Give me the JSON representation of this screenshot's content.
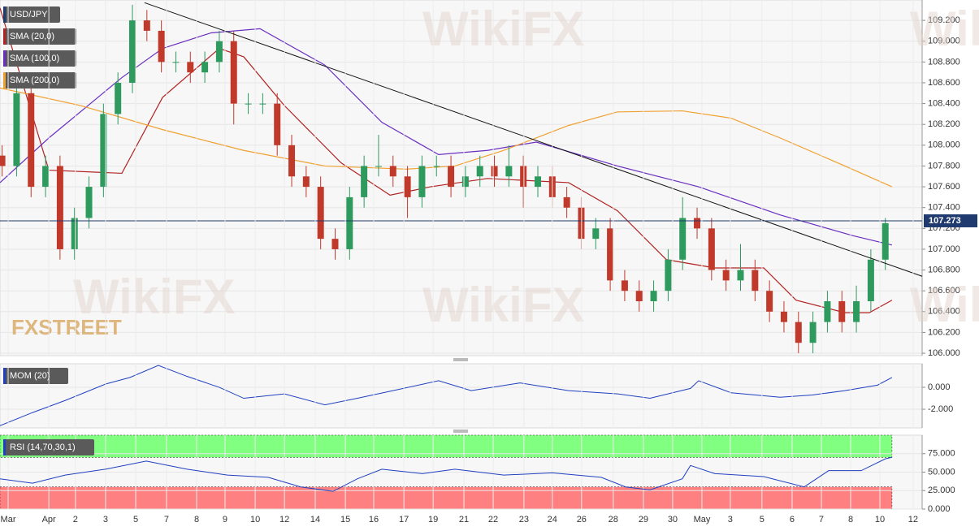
{
  "chart_data": [
    {
      "type": "candlestick",
      "name": "USD/JPY",
      "watermark": "WikiFX",
      "brand": "FXSTREET",
      "xlim": [
        -0.27,
        30.3
      ],
      "ylim": [
        105.977,
        109.396
      ],
      "yticks": [
        {
          "value": 106.0,
          "label": "106.000"
        },
        {
          "value": 106.2,
          "label": "106.200"
        },
        {
          "value": 106.4,
          "label": "106.400"
        },
        {
          "value": 106.6,
          "label": "106.600"
        },
        {
          "value": 106.8,
          "label": "106.800"
        },
        {
          "value": 107.0,
          "label": "107.000"
        },
        {
          "value": 107.2,
          "label": "107.200"
        },
        {
          "value": 107.4,
          "label": "107.400"
        },
        {
          "value": 107.6,
          "label": "107.600"
        },
        {
          "value": 107.8,
          "label": "107.800"
        },
        {
          "value": 108.0,
          "label": "108.000"
        },
        {
          "value": 108.2,
          "label": "108.200"
        },
        {
          "value": 108.4,
          "label": "108.400"
        },
        {
          "value": 108.6,
          "label": "108.600"
        },
        {
          "value": 108.8,
          "label": "108.800"
        },
        {
          "value": 109.0,
          "label": "109.000"
        },
        {
          "value": 109.2,
          "label": "109.200"
        }
      ],
      "up_color": "#2e9a5e",
      "down_color": "#c0392b",
      "x": [
        -0.2,
        0.28,
        0.76,
        1.24,
        1.72,
        2.2,
        2.68,
        3.16,
        3.64,
        4.12,
        4.6,
        5.08,
        5.56,
        6.04,
        6.52,
        7.0,
        7.48,
        7.96,
        8.44,
        8.92,
        9.4,
        9.88,
        10.36,
        10.84,
        11.32,
        11.8,
        12.28,
        12.76,
        13.24,
        13.72,
        14.2,
        14.68,
        15.16,
        15.64,
        16.12,
        16.6,
        17.08,
        17.56,
        18.04,
        18.52,
        19.0,
        19.48,
        19.96,
        20.44,
        20.92,
        21.4,
        21.88,
        22.36,
        22.84,
        23.32,
        23.8,
        24.28,
        24.76,
        25.24,
        25.72,
        26.2,
        26.68,
        27.16,
        27.64,
        28.12,
        28.6,
        29.08
      ],
      "open": [
        107.9,
        107.8,
        108.5,
        107.6,
        107.8,
        107.0,
        107.3,
        107.6,
        108.3,
        108.6,
        109.2,
        109.1,
        108.8,
        108.8,
        108.7,
        108.8,
        109.0,
        108.4,
        108.4,
        108.4,
        108.0,
        107.7,
        107.6,
        107.1,
        107.0,
        107.5,
        107.8,
        107.8,
        107.7,
        107.5,
        107.8,
        107.8,
        107.6,
        107.7,
        107.8,
        107.7,
        107.8,
        107.6,
        107.7,
        107.5,
        107.4,
        107.1,
        107.2,
        106.7,
        106.6,
        106.5,
        106.6,
        106.9,
        107.3,
        107.2,
        106.8,
        106.7,
        106.8,
        106.6,
        106.4,
        106.3,
        106.1,
        106.3,
        106.5,
        106.3,
        106.5,
        106.9
      ],
      "high": [
        108.0,
        108.6,
        108.6,
        107.9,
        107.9,
        107.4,
        107.7,
        108.4,
        108.7,
        109.35,
        109.3,
        109.2,
        108.9,
        108.9,
        108.9,
        109.1,
        109.1,
        108.5,
        108.5,
        108.5,
        108.1,
        107.8,
        107.7,
        107.2,
        107.6,
        107.9,
        108.1,
        107.9,
        107.8,
        107.9,
        107.9,
        107.9,
        107.8,
        107.9,
        107.9,
        108.0,
        107.9,
        107.8,
        107.8,
        107.6,
        107.5,
        107.3,
        107.3,
        106.8,
        106.7,
        106.7,
        107.0,
        107.5,
        107.4,
        107.3,
        106.9,
        107.05,
        106.9,
        106.7,
        106.5,
        106.4,
        106.4,
        106.6,
        106.6,
        106.65,
        107.0,
        107.3
      ],
      "low": [
        107.7,
        107.7,
        107.5,
        107.5,
        106.9,
        106.9,
        107.2,
        107.5,
        108.2,
        108.5,
        109.0,
        108.7,
        108.7,
        108.6,
        108.6,
        108.7,
        108.2,
        108.3,
        108.3,
        107.9,
        107.6,
        107.5,
        107.0,
        106.9,
        106.9,
        107.4,
        107.7,
        107.6,
        107.3,
        107.4,
        107.7,
        107.5,
        107.5,
        107.6,
        107.6,
        107.6,
        107.4,
        107.5,
        107.4,
        107.3,
        107.0,
        107.0,
        106.6,
        106.5,
        106.4,
        106.4,
        106.5,
        106.8,
        107.1,
        106.7,
        106.6,
        106.6,
        106.5,
        106.3,
        106.2,
        106.0,
        106.0,
        106.2,
        106.2,
        106.2,
        106.4,
        106.8
      ],
      "close": [
        107.8,
        108.5,
        107.6,
        107.8,
        107.0,
        107.3,
        107.6,
        108.3,
        108.6,
        109.2,
        109.1,
        108.8,
        108.8,
        108.7,
        108.8,
        109.0,
        108.4,
        108.4,
        108.4,
        108.0,
        107.7,
        107.6,
        107.1,
        107.0,
        107.5,
        107.8,
        107.8,
        107.7,
        107.5,
        107.8,
        107.8,
        107.6,
        107.7,
        107.8,
        107.7,
        107.8,
        107.6,
        107.7,
        107.5,
        107.4,
        107.1,
        107.2,
        106.7,
        106.6,
        106.5,
        106.6,
        106.9,
        107.3,
        107.2,
        106.8,
        106.7,
        106.8,
        106.6,
        106.4,
        106.3,
        106.1,
        106.3,
        106.5,
        106.3,
        106.5,
        106.9,
        107.25
      ],
      "last_price": 107.273,
      "trendline": {
        "x": [
          4.52,
          30.3
        ],
        "y": [
          109.37,
          106.74
        ]
      },
      "series": [
        {
          "name": "SMA (20,0)",
          "color": "#b22222",
          "x": [
            -0.27,
            1.35,
            3.77,
            5.12,
            7.0,
            7.81,
            9.16,
            11.04,
            12.66,
            14.0,
            15.89,
            18.58,
            20.2,
            21.82,
            23.43,
            25.05,
            26.12,
            27.74,
            28.55,
            29.3
          ],
          "values": [
            109.32,
            107.76,
            107.73,
            108.46,
            108.93,
            108.85,
            108.38,
            107.83,
            107.52,
            107.6,
            107.68,
            107.64,
            107.37,
            106.9,
            106.82,
            106.82,
            106.51,
            106.39,
            106.39,
            106.51
          ]
        },
        {
          "name": "SMA (100,0)",
          "color": "#6a2fc0",
          "x": [
            -0.27,
            1.35,
            3.77,
            5.12,
            6.73,
            8.35,
            10.5,
            12.39,
            14.27,
            15.89,
            17.51,
            20.2,
            22.89,
            25.59,
            28.01,
            29.3
          ],
          "values": [
            107.64,
            108.07,
            108.65,
            108.93,
            109.08,
            109.12,
            108.77,
            108.22,
            107.91,
            107.95,
            108.03,
            107.8,
            107.6,
            107.33,
            107.13,
            107.04
          ]
        },
        {
          "name": "SMA (200,0)",
          "color": "#f0a030",
          "x": [
            -0.27,
            2.42,
            5.12,
            7.81,
            10.5,
            13.2,
            14.81,
            16.43,
            18.58,
            20.2,
            22.35,
            23.97,
            25.59,
            27.74,
            29.3
          ],
          "values": [
            108.55,
            108.38,
            108.15,
            107.95,
            107.8,
            107.77,
            107.8,
            107.95,
            108.19,
            108.32,
            108.33,
            108.26,
            108.07,
            107.8,
            107.6
          ]
        }
      ]
    },
    {
      "type": "line",
      "name": "MOM (20)",
      "color": "#2040c0",
      "xlim": [
        -0.27,
        30.3
      ],
      "ylim": [
        -3.7,
        2.15
      ],
      "yticks": [
        {
          "value": -2,
          "label": "-2.000"
        },
        {
          "value": 0,
          "label": "0.000"
        }
      ],
      "x": [
        -0.27,
        0.81,
        1.89,
        3.23,
        4.04,
        4.98,
        5.93,
        7.0,
        7.81,
        9.16,
        10.5,
        11.58,
        12.93,
        14.27,
        15.35,
        16.97,
        18.58,
        20.2,
        21.28,
        22.62,
        22.89,
        23.97,
        25.59,
        26.66,
        27.74,
        28.82,
        29.3
      ],
      "values": [
        -3.5,
        -2.3,
        -1.2,
        0.3,
        0.9,
        2.0,
        1.0,
        0.0,
        -1.0,
        -0.6,
        -1.6,
        -1.0,
        -0.2,
        0.6,
        -0.3,
        0.4,
        -0.3,
        -0.6,
        -1.0,
        -0.1,
        0.6,
        -0.5,
        -0.9,
        -0.7,
        -0.3,
        0.2,
        0.9
      ]
    },
    {
      "type": "line",
      "name": "RSI (14,70,30,1)",
      "color": "#2040c0",
      "xlim": [
        -0.27,
        30.3
      ],
      "ylim": [
        0,
        100
      ],
      "bands": [
        {
          "from": 70,
          "to": 100,
          "color": "#80ff80"
        },
        {
          "from": 0,
          "to": 30,
          "color": "#ff8080"
        }
      ],
      "yticks": [
        {
          "value": 0,
          "label": "0.000"
        },
        {
          "value": 25,
          "label": "25.000"
        },
        {
          "value": 50,
          "label": "50.000"
        },
        {
          "value": 75,
          "label": "75.000"
        }
      ],
      "xticks": [
        {
          "value": 0,
          "label": "Mar"
        },
        {
          "value": 1.35,
          "label": "Apr"
        },
        {
          "value": 2.23,
          "label": "2"
        },
        {
          "value": 3.23,
          "label": "3"
        },
        {
          "value": 4.23,
          "label": "5"
        },
        {
          "value": 5.25,
          "label": "7"
        },
        {
          "value": 6.25,
          "label": "8"
        },
        {
          "value": 7.19,
          "label": "9"
        },
        {
          "value": 8.19,
          "label": "10"
        },
        {
          "value": 9.16,
          "label": "12"
        },
        {
          "value": 10.18,
          "label": "14"
        },
        {
          "value": 11.18,
          "label": "15"
        },
        {
          "value": 12.12,
          "label": "16"
        },
        {
          "value": 13.12,
          "label": "17"
        },
        {
          "value": 14.09,
          "label": "19"
        },
        {
          "value": 15.11,
          "label": "21"
        },
        {
          "value": 16.08,
          "label": "22"
        },
        {
          "value": 17.1,
          "label": "23"
        },
        {
          "value": 18.04,
          "label": "24"
        },
        {
          "value": 19.01,
          "label": "26"
        },
        {
          "value": 20.06,
          "label": "28"
        },
        {
          "value": 21.06,
          "label": "29"
        },
        {
          "value": 22.03,
          "label": "30"
        },
        {
          "value": 23.0,
          "label": "May"
        },
        {
          "value": 23.94,
          "label": "3"
        },
        {
          "value": 24.99,
          "label": "5"
        },
        {
          "value": 25.99,
          "label": "6"
        },
        {
          "value": 26.96,
          "label": "7"
        },
        {
          "value": 27.93,
          "label": "8"
        },
        {
          "value": 28.9,
          "label": "10"
        },
        {
          "value": 30.0,
          "label": "12"
        }
      ],
      "x": [
        -0.27,
        0.81,
        1.89,
        3.23,
        4.58,
        5.93,
        7.27,
        8.62,
        9.7,
        10.77,
        11.58,
        12.39,
        13.73,
        14.81,
        16.43,
        18.04,
        19.66,
        20.47,
        21.28,
        22.35,
        22.62,
        23.43,
        25.05,
        26.39,
        27.2,
        28.28,
        29.08,
        29.3
      ],
      "values": [
        41,
        35,
        46,
        54,
        65,
        54,
        46,
        43,
        30,
        24,
        41,
        54,
        48,
        54,
        46,
        49,
        43,
        30,
        26,
        41,
        59,
        48,
        44,
        30,
        52,
        52,
        68,
        70
      ]
    }
  ]
}
